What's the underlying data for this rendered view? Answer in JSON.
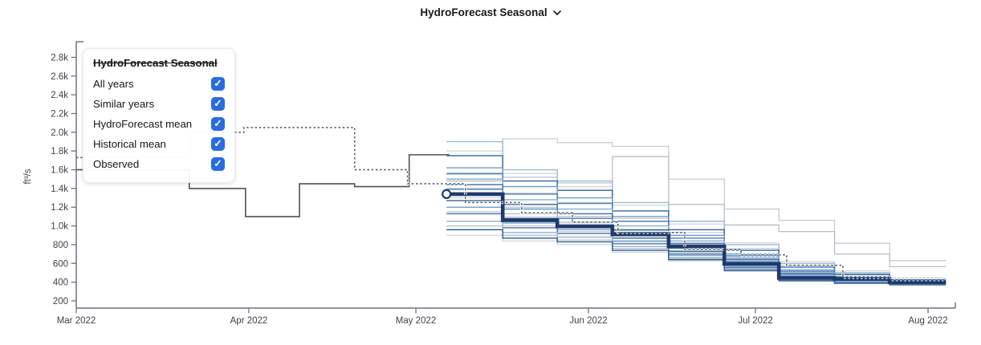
{
  "header": {
    "title": "HydroForecast Seasonal"
  },
  "legend": {
    "title": "HydroForecast Seasonal",
    "checkbox_color": "#2a6ce0",
    "checkmark": "✓",
    "items": [
      {
        "label": "All years",
        "checked": true
      },
      {
        "label": "Similar years",
        "checked": true
      },
      {
        "label": "HydroForecast mean",
        "checked": true
      },
      {
        "label": "Historical mean",
        "checked": true
      },
      {
        "label": "Observed",
        "checked": true
      }
    ]
  },
  "chart_data": {
    "type": "line",
    "title": "HydroForecast Seasonal",
    "ylabel": "ft³/s",
    "x_axis_note": "days since Mar 1 2022",
    "x_domain_days": [
      0,
      158
    ],
    "y_domain": [
      120,
      2970
    ],
    "grid": false,
    "x_ticks": [
      {
        "day": 0,
        "label": "Mar 2022"
      },
      {
        "day": 31,
        "label": "Apr 2022"
      },
      {
        "day": 61,
        "label": "May 2022"
      },
      {
        "day": 92,
        "label": "Jun 2022"
      },
      {
        "day": 122,
        "label": "Jul 2022"
      },
      {
        "day": 153,
        "label": "Aug 2022"
      }
    ],
    "y_ticks": [
      {
        "value": 200,
        "label": "200"
      },
      {
        "value": 400,
        "label": "400"
      },
      {
        "value": 600,
        "label": "600"
      },
      {
        "value": 800,
        "label": "800"
      },
      {
        "value": 1000,
        "label": "1.0k"
      },
      {
        "value": 1200,
        "label": "1.2k"
      },
      {
        "value": 1400,
        "label": "1.4k"
      },
      {
        "value": 1600,
        "label": "1.6k"
      },
      {
        "value": 1800,
        "label": "1.8k"
      },
      {
        "value": 2000,
        "label": "2.0k"
      },
      {
        "value": 2200,
        "label": "2.2k"
      },
      {
        "value": 2400,
        "label": "2.4k"
      },
      {
        "value": 2600,
        "label": "2.6k"
      },
      {
        "value": 2800,
        "label": "2.8k"
      }
    ],
    "forecast_boundaries_days": [
      66.5,
      76.6,
      86.4,
      96.3,
      106.4,
      116.4,
      126.2,
      136.2,
      146.1,
      156.2
    ],
    "series": {
      "observed": {
        "label": "Observed",
        "color": "#4d5158",
        "style": "solid-step",
        "points": [
          [
            0,
            1600
          ],
          [
            20.3,
            1600
          ],
          [
            20.3,
            1400
          ],
          [
            30.4,
            1400
          ],
          [
            30.4,
            1100
          ],
          [
            40.1,
            1100
          ],
          [
            40.1,
            1450
          ],
          [
            50,
            1450
          ],
          [
            50,
            1420
          ],
          [
            59.8,
            1420
          ],
          [
            59.8,
            1760
          ],
          [
            67,
            1760
          ]
        ]
      },
      "historical_mean": {
        "label": "Historical mean",
        "color": "#4d5158",
        "style": "dashed-step",
        "points": [
          [
            0,
            1730
          ],
          [
            20.5,
            1730
          ],
          [
            20.5,
            2000
          ],
          [
            30.1,
            2000
          ],
          [
            30.1,
            2050
          ],
          [
            50,
            2050
          ],
          [
            50,
            1600
          ],
          [
            59.5,
            1600
          ],
          [
            59.5,
            1450
          ],
          [
            69.9,
            1450
          ],
          [
            69.9,
            1250
          ],
          [
            80,
            1250
          ],
          [
            80,
            1140
          ],
          [
            89.1,
            1140
          ],
          [
            89.1,
            1040
          ],
          [
            97.3,
            1040
          ],
          [
            97.3,
            930
          ],
          [
            109.3,
            930
          ],
          [
            109.3,
            750
          ],
          [
            119.4,
            750
          ],
          [
            119.4,
            690
          ],
          [
            127.6,
            690
          ],
          [
            127.6,
            580
          ],
          [
            137.7,
            580
          ],
          [
            137.7,
            450
          ],
          [
            146.3,
            450
          ],
          [
            146.3,
            425
          ],
          [
            156,
            425
          ]
        ]
      },
      "forecast_mean": {
        "label": "HydroForecast mean",
        "color": "#1e3a6b",
        "style": "thick-step",
        "start_marker": {
          "day": 66.5,
          "value": 1340
        },
        "values": [
          1340,
          1060,
          995,
          910,
          780,
          595,
          445,
          435,
          400
        ]
      },
      "similar_years": {
        "label": "Similar years",
        "palette": [
          "#9cb9d8",
          "#2f64a0",
          "#6f9ac6",
          "#4a7cb2",
          "#86add1",
          "#3a6ea7",
          "#5c8bbd",
          "#a9c3dc",
          "#325f97",
          "#7aa2ca",
          "#4674ab",
          "#94b4d5",
          "#27598f"
        ],
        "members": [
          [
            1900,
            1600,
            1480,
            1250,
            1050,
            800,
            600,
            500,
            430
          ],
          [
            1750,
            1480,
            1380,
            1160,
            960,
            740,
            560,
            480,
            420
          ],
          [
            1620,
            1420,
            1300,
            1100,
            900,
            700,
            530,
            460,
            415
          ],
          [
            1560,
            1340,
            1240,
            1050,
            870,
            680,
            515,
            450,
            410
          ],
          [
            1500,
            1280,
            1180,
            1000,
            840,
            660,
            500,
            445,
            405
          ],
          [
            1440,
            1230,
            1130,
            960,
            810,
            640,
            490,
            435,
            400
          ],
          [
            1390,
            1180,
            1080,
            930,
            780,
            620,
            475,
            430,
            395
          ],
          [
            1330,
            1130,
            1040,
            900,
            760,
            600,
            465,
            420,
            392
          ],
          [
            1270,
            1080,
            1000,
            870,
            730,
            585,
            455,
            415,
            388
          ],
          [
            1200,
            1030,
            960,
            840,
            710,
            570,
            445,
            408,
            384
          ],
          [
            1130,
            980,
            920,
            810,
            690,
            555,
            435,
            400,
            380
          ],
          [
            1050,
            930,
            880,
            780,
            665,
            540,
            425,
            395,
            376
          ],
          [
            960,
            870,
            830,
            740,
            640,
            525,
            415,
            388,
            372
          ]
        ]
      },
      "all_years": {
        "label": "All years",
        "palette": [
          "#c7cbd2",
          "#b8bdc5",
          "#d2d5da"
        ],
        "members": [
          [
            1500,
            1930,
            1890,
            1850,
            1500,
            1180,
            1060,
            815,
            630
          ],
          [
            1480,
            1520,
            1460,
            1740,
            1230,
            1010,
            940,
            700,
            565
          ],
          [
            1800,
            1560,
            1420,
            1220,
            1020,
            820,
            620,
            520,
            445
          ],
          [
            1550,
            1350,
            1250,
            1080,
            930,
            760,
            580,
            490,
            430
          ],
          [
            1400,
            1200,
            1100,
            950,
            820,
            650,
            500,
            450,
            420
          ],
          [
            1300,
            1100,
            1020,
            890,
            770,
            610,
            470,
            430,
            400
          ],
          [
            1150,
            1000,
            940,
            830,
            700,
            560,
            440,
            405,
            385
          ],
          [
            1000,
            900,
            850,
            760,
            650,
            530,
            420,
            392,
            375
          ],
          [
            900,
            840,
            800,
            720,
            625,
            515,
            410,
            385,
            370
          ]
        ]
      }
    }
  }
}
